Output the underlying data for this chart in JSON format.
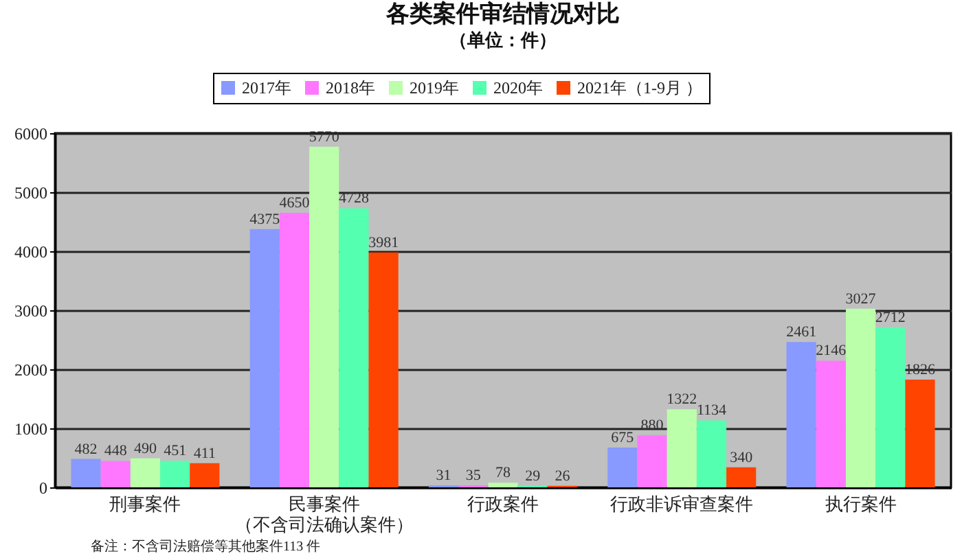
{
  "chart_data": {
    "type": "bar",
    "title": "各类案件审结情况对比",
    "subtitle": "（单位：件）",
    "categories": [
      "刑事案件",
      "民事案件（不含司法确认案件）",
      "行政案件",
      "行政非诉审查案件",
      "执行案件"
    ],
    "series": [
      {
        "name": "2017年",
        "color": "#8899ff",
        "values": [
          482,
          4375,
          31,
          675,
          2461
        ]
      },
      {
        "name": "2018年",
        "color": "#ff77ff",
        "values": [
          448,
          4650,
          35,
          880,
          2146
        ]
      },
      {
        "name": "2019年",
        "color": "#bbffaa",
        "values": [
          490,
          5770,
          78,
          1322,
          3027
        ]
      },
      {
        "name": "2020年",
        "color": "#55ffb0",
        "values": [
          451,
          4728,
          29,
          1134,
          2712
        ]
      },
      {
        "name": "2021年（1-9月 ）",
        "color": "#ff4400",
        "values": [
          411,
          3981,
          26,
          340,
          1826
        ]
      }
    ],
    "ylim": [
      0,
      6000
    ],
    "yticks": [
      0,
      1000,
      2000,
      3000,
      4000,
      5000,
      6000
    ],
    "grid": "y",
    "legend": "top",
    "data_labels": true,
    "annotations": [
      "备注：不含司法赔偿等其他案件113 件"
    ]
  }
}
